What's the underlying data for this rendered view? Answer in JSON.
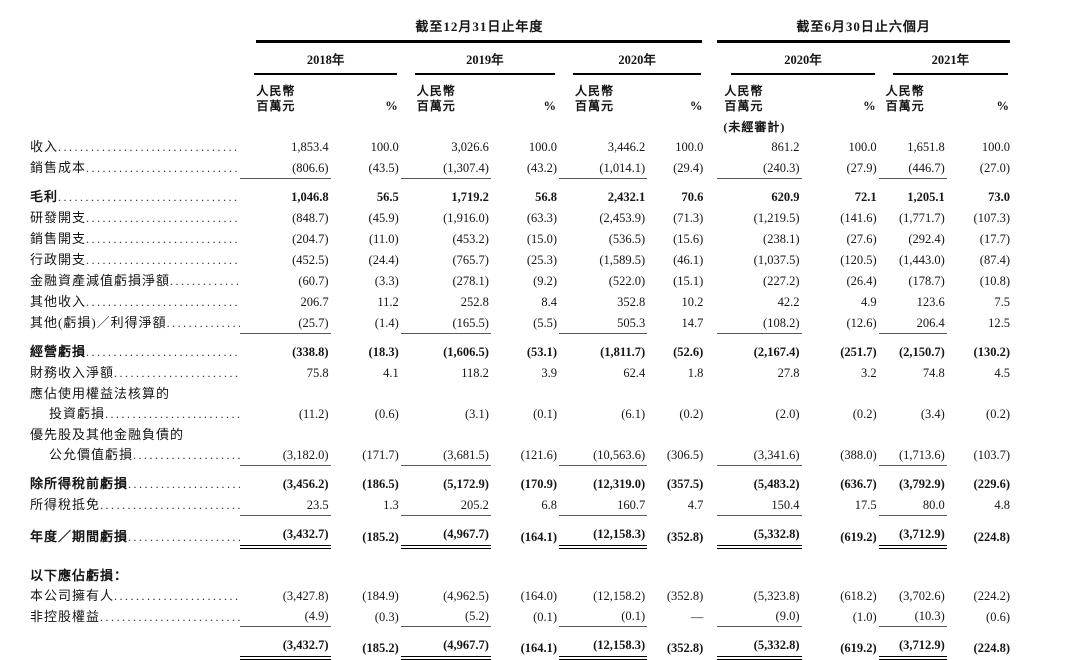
{
  "table": {
    "annual_header": "截至12月31日止年度",
    "interim_header": "截至6月30日止六個月",
    "years": [
      "2018年",
      "2019年",
      "2020年",
      "2020年",
      "2021年"
    ],
    "unit_line1": "人民幣",
    "unit_line2": "百萬元",
    "pct_label": "%",
    "unaudited_note": "(未經審計)",
    "rows": [
      {
        "label": "收入",
        "dots": true,
        "values": [
          "1,853.4",
          "100.0",
          "3,026.6",
          "100.0",
          "3,446.2",
          "100.0",
          "861.2",
          "100.0",
          "1,651.8",
          "100.0"
        ]
      },
      {
        "label": "銷售成本",
        "dots": true,
        "underline": "single",
        "values": [
          "(806.6)",
          "(43.5)",
          "(1,307.4)",
          "(43.2)",
          "(1,014.1)",
          "(29.4)",
          "(240.3)",
          "(27.9)",
          "(446.7)",
          "(27.0)"
        ]
      },
      {
        "label": "毛利",
        "bold": true,
        "dots": true,
        "space": "sm",
        "values": [
          "1,046.8",
          "56.5",
          "1,719.2",
          "56.8",
          "2,432.1",
          "70.6",
          "620.9",
          "72.1",
          "1,205.1",
          "73.0"
        ]
      },
      {
        "label": "研發開支",
        "dots": true,
        "values": [
          "(848.7)",
          "(45.9)",
          "(1,916.0)",
          "(63.3)",
          "(2,453.9)",
          "(71.3)",
          "(1,219.5)",
          "(141.6)",
          "(1,771.7)",
          "(107.3)"
        ]
      },
      {
        "label": "銷售開支",
        "dots": true,
        "values": [
          "(204.7)",
          "(11.0)",
          "(453.2)",
          "(15.0)",
          "(536.5)",
          "(15.6)",
          "(238.1)",
          "(27.6)",
          "(292.4)",
          "(17.7)"
        ]
      },
      {
        "label": "行政開支",
        "dots": true,
        "values": [
          "(452.5)",
          "(24.4)",
          "(765.7)",
          "(25.3)",
          "(1,589.5)",
          "(46.1)",
          "(1,037.5)",
          "(120.5)",
          "(1,443.0)",
          "(87.4)"
        ]
      },
      {
        "label": "金融資產減值虧損淨額",
        "dots": true,
        "values": [
          "(60.7)",
          "(3.3)",
          "(278.1)",
          "(9.2)",
          "(522.0)",
          "(15.1)",
          "(227.2)",
          "(26.4)",
          "(178.7)",
          "(10.8)"
        ]
      },
      {
        "label": "其他收入",
        "dots": true,
        "values": [
          "206.7",
          "11.2",
          "252.8",
          "8.4",
          "352.8",
          "10.2",
          "42.2",
          "4.9",
          "123.6",
          "7.5"
        ]
      },
      {
        "label": "其他(虧損)／利得淨額",
        "dots": true,
        "underline": "single",
        "values": [
          "(25.7)",
          "(1.4)",
          "(165.5)",
          "(5.5)",
          "505.3",
          "14.7",
          "(108.2)",
          "(12.6)",
          "206.4",
          "12.5"
        ]
      },
      {
        "label": "經營虧損",
        "bold": true,
        "dots": true,
        "space": "sm",
        "values": [
          "(338.8)",
          "(18.3)",
          "(1,606.5)",
          "(53.1)",
          "(1,811.7)",
          "(52.6)",
          "(2,167.4)",
          "(251.7)",
          "(2,150.7)",
          "(130.2)"
        ]
      },
      {
        "label": "財務收入淨額",
        "dots": true,
        "values": [
          "75.8",
          "4.1",
          "118.2",
          "3.9",
          "62.4",
          "1.8",
          "27.8",
          "3.2",
          "74.8",
          "4.5"
        ]
      },
      {
        "label": "應佔使用權益法核算的",
        "dots": false,
        "values": null
      },
      {
        "label": "投資虧損",
        "indent": true,
        "dots": true,
        "values": [
          "(11.2)",
          "(0.6)",
          "(3.1)",
          "(0.1)",
          "(6.1)",
          "(0.2)",
          "(2.0)",
          "(0.2)",
          "(3.4)",
          "(0.2)"
        ]
      },
      {
        "label": "優先股及其他金融負債的",
        "dots": false,
        "values": null
      },
      {
        "label": "公允價值虧損",
        "indent": true,
        "dots": true,
        "underline": "single",
        "values": [
          "(3,182.0)",
          "(171.7)",
          "(3,681.5)",
          "(121.6)",
          "(10,563.6)",
          "(306.5)",
          "(3,341.6)",
          "(388.0)",
          "(1,713.6)",
          "(103.7)"
        ]
      },
      {
        "label": "除所得稅前虧損",
        "bold": true,
        "dots": true,
        "space": "sm",
        "values": [
          "(3,456.2)",
          "(186.5)",
          "(5,172.9)",
          "(170.9)",
          "(12,319.0)",
          "(357.5)",
          "(5,483.2)",
          "(636.7)",
          "(3,792.9)",
          "(229.6)"
        ]
      },
      {
        "label": "所得稅抵免",
        "dots": true,
        "underline": "single",
        "values": [
          "23.5",
          "1.3",
          "205.2",
          "6.8",
          "160.7",
          "4.7",
          "150.4",
          "17.5",
          "80.0",
          "4.8"
        ]
      },
      {
        "label": "年度／期間虧損",
        "bold": true,
        "dots": true,
        "space": "sm",
        "underline": "double",
        "values": [
          "(3,432.7)",
          "(185.2)",
          "(4,967.7)",
          "(164.1)",
          "(12,158.3)",
          "(352.8)",
          "(5,332.8)",
          "(619.2)",
          "(3,712.9)",
          "(224.8)"
        ]
      },
      {
        "label": "以下應佔虧損：",
        "bold": true,
        "dots": false,
        "space": "lg",
        "values": null
      },
      {
        "label": "本公司擁有人",
        "dots": true,
        "values": [
          "(3,427.8)",
          "(184.9)",
          "(4,962.5)",
          "(164.0)",
          "(12,158.2)",
          "(352.8)",
          "(5,323.8)",
          "(618.2)",
          "(3,702.6)",
          "(224.2)"
        ]
      },
      {
        "label": "非控股權益",
        "dots": true,
        "underline": "single",
        "values": [
          "(4.9)",
          "(0.3)",
          "(5.2)",
          "(0.1)",
          "(0.1)",
          "—",
          "(9.0)",
          "(1.0)",
          "(10.3)",
          "(0.6)"
        ]
      },
      {
        "label": "",
        "bold": true,
        "dots": false,
        "space": "sm",
        "underline": "double",
        "values": [
          "(3,432.7)",
          "(185.2)",
          "(4,967.7)",
          "(164.1)",
          "(12,158.3)",
          "(352.8)",
          "(5,332.8)",
          "(619.2)",
          "(3,712.9)",
          "(224.8)"
        ]
      }
    ]
  }
}
